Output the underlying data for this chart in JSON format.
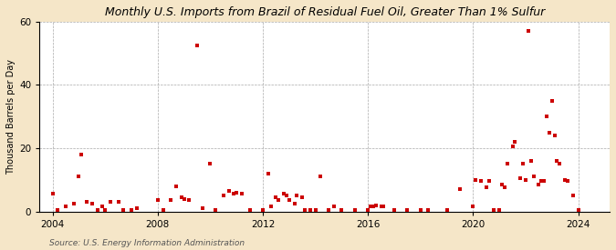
{
  "title": "Monthly U.S. Imports from Brazil of Residual Fuel Oil, Greater Than 1% Sulfur",
  "ylabel": "Thousand Barrels per Day",
  "source": "Source: U.S. Energy Information Administration",
  "background_color": "#f5e6c8",
  "plot_bg_color": "#ffffff",
  "marker_color": "#cc0000",
  "marker_size": 3.5,
  "ylim": [
    0,
    60
  ],
  "yticks": [
    0,
    20,
    40,
    60
  ],
  "xlim_start": 2003.5,
  "xlim_end": 2025.2,
  "xticks": [
    2004,
    2008,
    2012,
    2016,
    2020,
    2024
  ],
  "data": [
    [
      2004.0,
      5.5
    ],
    [
      2004.2,
      0.5
    ],
    [
      2004.5,
      1.5
    ],
    [
      2004.8,
      2.5
    ],
    [
      2005.0,
      11.0
    ],
    [
      2005.1,
      18.0
    ],
    [
      2005.3,
      3.0
    ],
    [
      2005.5,
      2.5
    ],
    [
      2005.7,
      0.5
    ],
    [
      2005.9,
      1.5
    ],
    [
      2006.0,
      0.5
    ],
    [
      2006.2,
      3.0
    ],
    [
      2006.5,
      3.0
    ],
    [
      2006.7,
      0.5
    ],
    [
      2007.0,
      0.5
    ],
    [
      2007.2,
      1.0
    ],
    [
      2008.0,
      3.5
    ],
    [
      2008.2,
      0.5
    ],
    [
      2008.5,
      3.5
    ],
    [
      2008.7,
      8.0
    ],
    [
      2008.9,
      4.5
    ],
    [
      2009.0,
      4.0
    ],
    [
      2009.2,
      3.5
    ],
    [
      2009.5,
      52.5
    ],
    [
      2009.7,
      1.0
    ],
    [
      2010.0,
      15.0
    ],
    [
      2010.2,
      0.5
    ],
    [
      2010.5,
      5.0
    ],
    [
      2010.7,
      6.5
    ],
    [
      2010.9,
      5.5
    ],
    [
      2011.0,
      6.0
    ],
    [
      2011.2,
      5.5
    ],
    [
      2011.5,
      0.5
    ],
    [
      2012.0,
      0.5
    ],
    [
      2012.2,
      12.0
    ],
    [
      2012.3,
      1.5
    ],
    [
      2012.5,
      4.5
    ],
    [
      2012.6,
      3.5
    ],
    [
      2012.8,
      5.5
    ],
    [
      2012.9,
      5.0
    ],
    [
      2013.0,
      3.5
    ],
    [
      2013.2,
      2.5
    ],
    [
      2013.3,
      5.0
    ],
    [
      2013.5,
      4.5
    ],
    [
      2013.6,
      0.5
    ],
    [
      2013.8,
      0.5
    ],
    [
      2014.0,
      0.5
    ],
    [
      2014.2,
      11.0
    ],
    [
      2014.5,
      0.5
    ],
    [
      2014.7,
      1.5
    ],
    [
      2015.0,
      0.5
    ],
    [
      2015.5,
      0.5
    ],
    [
      2016.0,
      0.5
    ],
    [
      2016.1,
      1.5
    ],
    [
      2016.2,
      1.5
    ],
    [
      2016.3,
      2.0
    ],
    [
      2016.5,
      1.5
    ],
    [
      2016.6,
      1.5
    ],
    [
      2017.0,
      0.5
    ],
    [
      2017.5,
      0.5
    ],
    [
      2018.0,
      0.5
    ],
    [
      2018.3,
      0.5
    ],
    [
      2019.0,
      0.5
    ],
    [
      2019.5,
      7.0
    ],
    [
      2020.0,
      1.5
    ],
    [
      2020.1,
      10.0
    ],
    [
      2020.3,
      9.5
    ],
    [
      2020.5,
      7.5
    ],
    [
      2020.6,
      9.5
    ],
    [
      2020.8,
      0.5
    ],
    [
      2021.0,
      0.5
    ],
    [
      2021.1,
      8.5
    ],
    [
      2021.2,
      7.5
    ],
    [
      2021.3,
      15.0
    ],
    [
      2021.5,
      20.5
    ],
    [
      2021.6,
      22.0
    ],
    [
      2021.8,
      10.5
    ],
    [
      2021.9,
      15.0
    ],
    [
      2022.0,
      10.0
    ],
    [
      2022.1,
      57.0
    ],
    [
      2022.2,
      16.0
    ],
    [
      2022.3,
      11.0
    ],
    [
      2022.5,
      8.5
    ],
    [
      2022.6,
      9.5
    ],
    [
      2022.7,
      9.5
    ],
    [
      2022.8,
      30.0
    ],
    [
      2022.9,
      25.0
    ],
    [
      2023.0,
      35.0
    ],
    [
      2023.1,
      24.0
    ],
    [
      2023.2,
      16.0
    ],
    [
      2023.3,
      15.0
    ],
    [
      2023.5,
      10.0
    ],
    [
      2023.6,
      9.5
    ],
    [
      2023.8,
      5.0
    ],
    [
      2024.0,
      0.5
    ]
  ]
}
